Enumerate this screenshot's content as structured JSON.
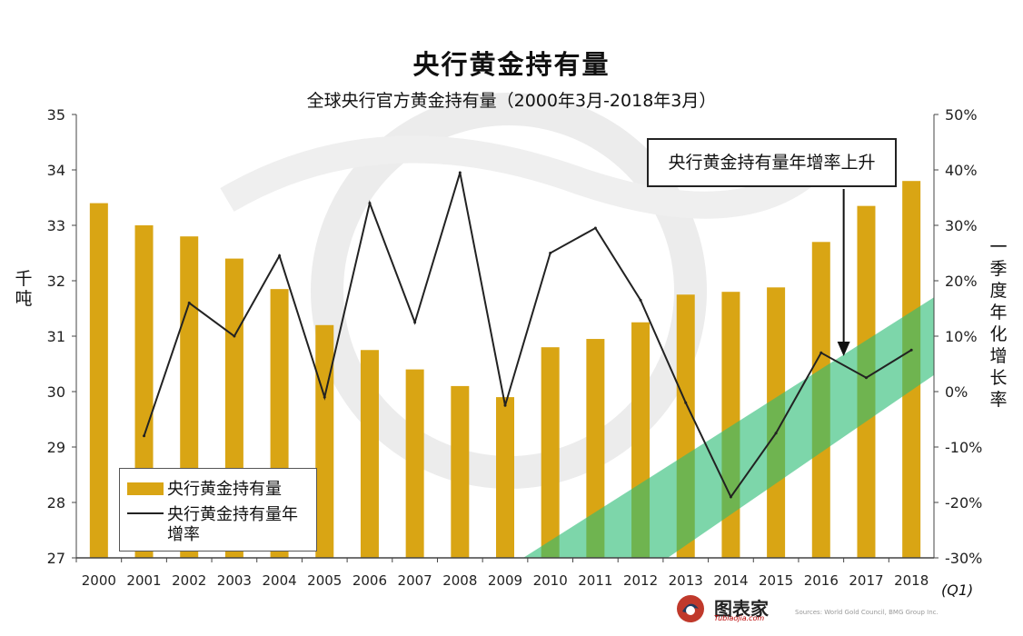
{
  "title": "央行黄金持有量",
  "subtitle": "全球央行官方黄金持有量（2000年3月-2018年3月）",
  "callout": "央行黄金持有量年增率上升",
  "x_suffix": "(Q1)",
  "brand": {
    "name": "图表家",
    "sub": "Tubiaojia.com"
  },
  "source": "Sources: World Gold Council, BMG Group Inc.",
  "colors": {
    "bar": "#D9A514",
    "line": "#222222",
    "band": "#2DBD76"
  },
  "chart_data": {
    "type": "bar",
    "categories": [
      "2000",
      "2001",
      "2002",
      "2003",
      "2004",
      "2005",
      "2006",
      "2007",
      "2008",
      "2009",
      "2010",
      "2011",
      "2012",
      "2013",
      "2014",
      "2015",
      "2016",
      "2017",
      "2018"
    ],
    "ylabel": "千吨",
    "y2label": "一季度年化增长率",
    "ylim": [
      27,
      35
    ],
    "y2lim": [
      -30,
      50
    ],
    "yticks": [
      "27",
      "28",
      "29",
      "30",
      "31",
      "32",
      "33",
      "34",
      "35"
    ],
    "y2ticks": [
      "-30%",
      "-20%",
      "-10%",
      "0%",
      "10%",
      "20%",
      "30%",
      "40%",
      "50%"
    ],
    "grid": false,
    "legend_position": "bottom-left",
    "series": [
      {
        "name": "央行黄金持有量",
        "type": "bar",
        "axis": "left",
        "values": [
          33.4,
          33.0,
          32.8,
          32.4,
          31.85,
          31.2,
          30.75,
          30.4,
          30.1,
          29.9,
          30.8,
          30.95,
          31.25,
          31.75,
          31.8,
          31.88,
          32.7,
          33.35,
          33.8
        ]
      },
      {
        "name": "央行黄金持有量年增率",
        "type": "line",
        "axis": "right",
        "x": [
          "2001",
          "2002",
          "2003",
          "2004",
          "2005",
          "2006",
          "2007",
          "2008",
          "2009",
          "2010",
          "2011",
          "2012",
          "2013",
          "2014",
          "2015",
          "2016",
          "2017",
          "2018"
        ],
        "values": [
          -8,
          16,
          10,
          24.5,
          -1,
          34,
          12.5,
          39.5,
          -2.5,
          25,
          29.5,
          16.5,
          -2,
          -19,
          -7.5,
          7,
          2.5,
          7.5
        ]
      }
    ],
    "annotation": {
      "text": "央行黄金持有量年增率上升",
      "arrow_to": "2016.5"
    }
  }
}
